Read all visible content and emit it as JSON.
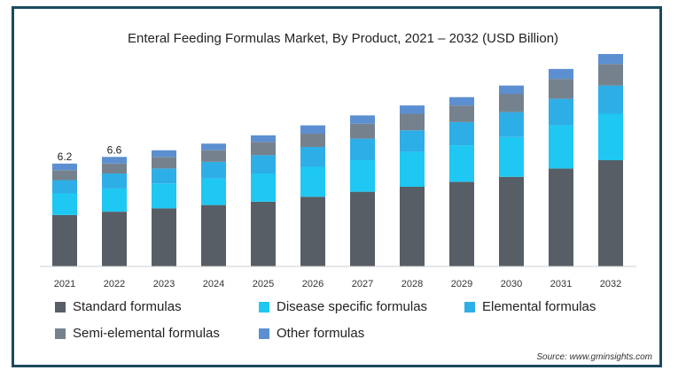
{
  "chart_data": {
    "type": "bar",
    "stacked": true,
    "title": "Enteral Feeding Formulas Market, By Product, 2021 – 2032 (USD Billion)",
    "categories": [
      "2021",
      "2022",
      "2023",
      "2024",
      "2025",
      "2026",
      "2027",
      "2028",
      "2029",
      "2030",
      "2031",
      "2032"
    ],
    "series": [
      {
        "name": "Standard formulas",
        "color": "#575e66",
        "values": [
          3.1,
          3.3,
          3.5,
          3.7,
          3.9,
          4.2,
          4.5,
          4.8,
          5.1,
          5.4,
          5.9,
          6.4
        ]
      },
      {
        "name": "Disease specific formulas",
        "color": "#1ec8f2",
        "values": [
          1.3,
          1.4,
          1.5,
          1.6,
          1.7,
          1.8,
          1.9,
          2.1,
          2.2,
          2.4,
          2.6,
          2.8
        ]
      },
      {
        "name": "Elemental formulas",
        "color": "#2eaee6",
        "values": [
          0.8,
          0.9,
          0.9,
          1.0,
          1.1,
          1.2,
          1.3,
          1.3,
          1.4,
          1.5,
          1.6,
          1.7
        ]
      },
      {
        "name": "Semi-elemental formulas",
        "color": "#75828e",
        "values": [
          0.6,
          0.6,
          0.7,
          0.7,
          0.8,
          0.8,
          0.9,
          1.0,
          1.0,
          1.1,
          1.2,
          1.3
        ]
      },
      {
        "name": "Other formulas",
        "color": "#5b8fd1",
        "values": [
          0.4,
          0.4,
          0.4,
          0.4,
          0.4,
          0.5,
          0.5,
          0.5,
          0.5,
          0.5,
          0.6,
          0.6
        ]
      }
    ],
    "data_labels": [
      {
        "category": "2021",
        "text": "6.2"
      },
      {
        "category": "2022",
        "text": "6.6"
      }
    ],
    "ylim": [
      0,
      12.8
    ],
    "grid": false,
    "legend_position": "bottom"
  },
  "source": "Source: www.gminsights.com"
}
